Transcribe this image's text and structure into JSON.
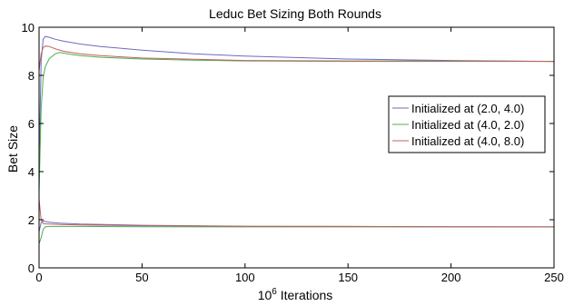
{
  "chart_data": {
    "type": "line",
    "title": "Leduc Bet Sizing Both Rounds",
    "xlabel_base": "10",
    "xlabel_exp": "6",
    "xlabel_rest": " Iterations",
    "ylabel": "Bet Size",
    "xlim": [
      0,
      250
    ],
    "ylim": [
      0,
      10
    ],
    "xticks": [
      0,
      50,
      100,
      150,
      200,
      250
    ],
    "yticks": [
      0,
      2,
      4,
      6,
      8,
      10
    ],
    "grid": false,
    "legend_position": "right",
    "series": [
      {
        "name": "Initialized at (2.0, 4.0)",
        "color": "#6b6bbf",
        "x": [
          0,
          1,
          2,
          3,
          5,
          8,
          12,
          20,
          30,
          50,
          75,
          100,
          150,
          200,
          250
        ],
        "y": [
          4.2,
          8.6,
          9.5,
          9.62,
          9.58,
          9.5,
          9.42,
          9.3,
          9.2,
          9.05,
          8.9,
          8.8,
          8.68,
          8.62,
          8.58
        ]
      },
      {
        "name": "Initialized at (4.0, 2.0)",
        "color": "#4caf50",
        "x": [
          0,
          1,
          2,
          3,
          5,
          8,
          10,
          15,
          20,
          30,
          50,
          75,
          100,
          150,
          200,
          250
        ],
        "y": [
          3.1,
          6.6,
          7.9,
          8.35,
          8.7,
          8.9,
          8.95,
          8.88,
          8.82,
          8.75,
          8.68,
          8.63,
          8.6,
          8.58,
          8.58,
          8.58
        ]
      },
      {
        "name": "Initialized at (4.0, 8.0)",
        "color": "#c46060",
        "x": [
          0,
          1,
          2,
          3,
          5,
          8,
          12,
          20,
          30,
          50,
          100,
          150,
          200,
          250
        ],
        "y": [
          8.2,
          8.9,
          9.15,
          9.22,
          9.2,
          9.1,
          9.0,
          8.9,
          8.82,
          8.72,
          8.62,
          8.6,
          8.6,
          8.58
        ]
      },
      {
        "name": "",
        "color": "#6b6bbf",
        "x": [
          0,
          1,
          2,
          3,
          5,
          10,
          20,
          50,
          100,
          150,
          200,
          250
        ],
        "y": [
          1.5,
          1.88,
          1.95,
          1.93,
          1.9,
          1.86,
          1.82,
          1.77,
          1.73,
          1.72,
          1.71,
          1.7
        ]
      },
      {
        "name": "",
        "color": "#4caf50",
        "x": [
          0,
          1,
          2,
          3,
          5,
          10,
          20,
          50,
          100,
          150,
          200,
          250
        ],
        "y": [
          1.0,
          1.25,
          1.6,
          1.7,
          1.72,
          1.72,
          1.72,
          1.71,
          1.7,
          1.7,
          1.7,
          1.7
        ]
      },
      {
        "name": "",
        "color": "#c46060",
        "x": [
          0,
          1,
          2,
          3,
          5,
          10,
          20,
          50,
          100,
          150,
          200,
          250
        ],
        "y": [
          2.85,
          2.0,
          1.85,
          1.83,
          1.82,
          1.8,
          1.78,
          1.75,
          1.73,
          1.72,
          1.71,
          1.7
        ]
      }
    ]
  }
}
